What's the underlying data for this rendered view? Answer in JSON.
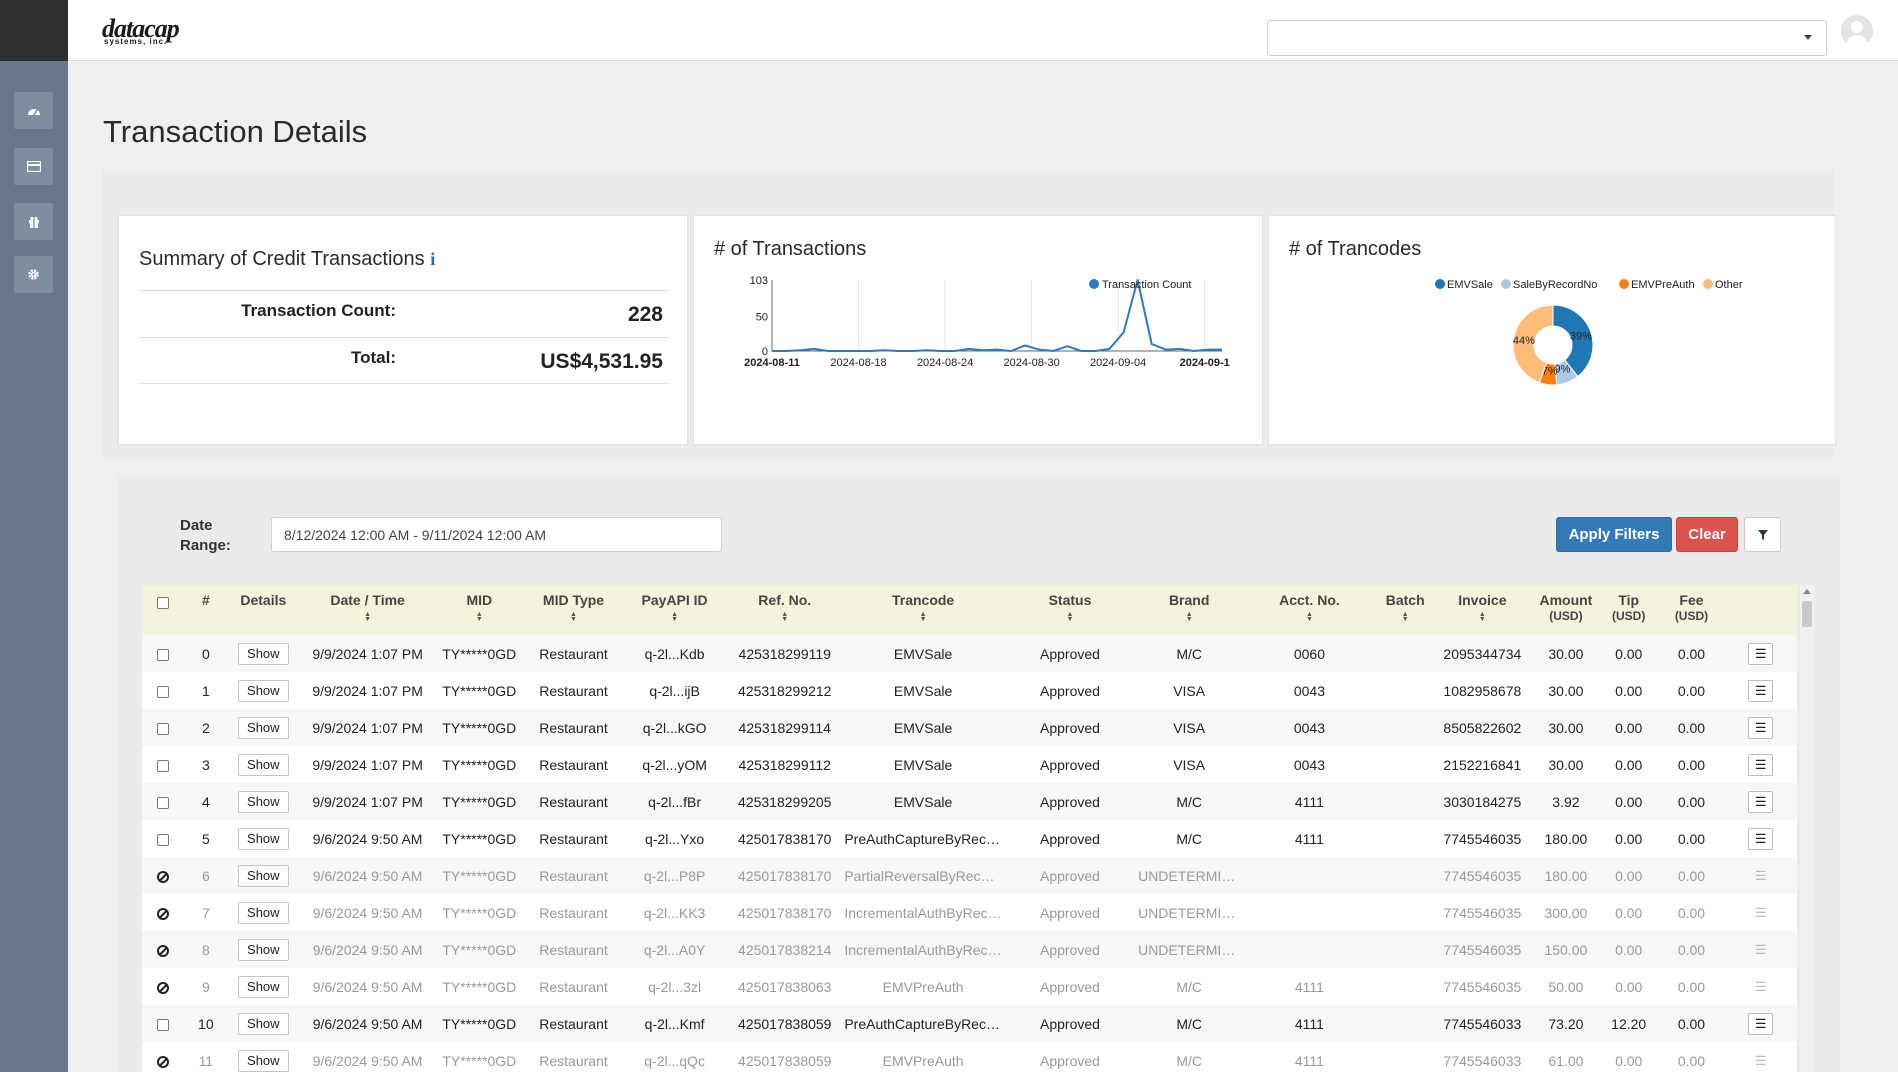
{
  "header": {
    "logo_main": "datacap",
    "logo_sub": "systems, inc.",
    "select_value": ""
  },
  "sidebar": {
    "items": [
      {
        "icon": "dashboard-icon"
      },
      {
        "icon": "credit-card-icon"
      },
      {
        "icon": "gift-icon"
      },
      {
        "icon": "gear-icon"
      }
    ]
  },
  "page": {
    "title": "Transaction Details"
  },
  "summary": {
    "title": "Summary of Credit Transactions",
    "info_icon": "i",
    "count_label": "Transaction Count:",
    "count_value": "228",
    "total_label": "Total:",
    "total_value": "US$4,531.95"
  },
  "transactions_chart": {
    "title": "# of Transactions"
  },
  "trancodes_chart": {
    "title": "# of Trancodes"
  },
  "chart_data": [
    {
      "type": "line",
      "title": "# of Transactions",
      "series": [
        {
          "name": "Transaction Count",
          "color": "#2a7bbf",
          "values": [
            0,
            0,
            1,
            3,
            0,
            0,
            0,
            0,
            1,
            0,
            0,
            1,
            0,
            0,
            3,
            1,
            2,
            0,
            8,
            2,
            0,
            7,
            0,
            0,
            3,
            27,
            103,
            10,
            2,
            3,
            0,
            2,
            2
          ]
        }
      ],
      "x_ticks": [
        "2024-08-11",
        "2024-08-18",
        "2024-08-24",
        "2024-08-30",
        "2024-09-04",
        "2024-09-1"
      ],
      "y_ticks": [
        "0",
        "50",
        "103"
      ],
      "ylim": [
        0,
        103
      ],
      "grid": true,
      "legend": "top-right"
    },
    {
      "type": "pie",
      "title": "# of Trancodes",
      "slices": [
        {
          "name": "EMVSale",
          "value": 39,
          "label": "39%",
          "color": "#1f77b4"
        },
        {
          "name": "SaleByRecordNo",
          "value": 9,
          "label": "9%",
          "color": "#aec7e8"
        },
        {
          "name": "EMVPreAuth",
          "value": 7,
          "label": "7%",
          "color": "#ff7f0e"
        },
        {
          "name": "Other",
          "value": 44,
          "label": "44%",
          "color": "#ffbb78"
        }
      ],
      "legend": "top"
    }
  ],
  "filters": {
    "date_range_label_1": "Date",
    "date_range_label_2": "Range:",
    "date_range_value": "8/12/2024 12:00 AM - 9/11/2024 12:00 AM",
    "apply_label": "Apply Filters",
    "clear_label": "Clear"
  },
  "table": {
    "columns": [
      {
        "key": "select",
        "label": ""
      },
      {
        "key": "num",
        "label": "#"
      },
      {
        "key": "details",
        "label": "Details"
      },
      {
        "key": "datetime",
        "label": "Date / Time",
        "sortable": true
      },
      {
        "key": "mid",
        "label": "MID",
        "sortable": true
      },
      {
        "key": "midtype",
        "label": "MID Type",
        "sortable": true
      },
      {
        "key": "payapi",
        "label": "PayAPI ID",
        "sortable": true
      },
      {
        "key": "ref",
        "label": "Ref. No.",
        "sortable": true
      },
      {
        "key": "trancode",
        "label": "Trancode",
        "sortable": true
      },
      {
        "key": "status",
        "label": "Status",
        "sortable": true
      },
      {
        "key": "brand",
        "label": "Brand",
        "sortable": true
      },
      {
        "key": "acct",
        "label": "Acct. No.",
        "sortable": true
      },
      {
        "key": "batch",
        "label": "Batch",
        "sortable": true
      },
      {
        "key": "invoice",
        "label": "Invoice",
        "sortable": true
      },
      {
        "key": "amount",
        "label": "Amount",
        "sub": "(USD)"
      },
      {
        "key": "tip",
        "label": "Tip",
        "sub": "(USD)"
      },
      {
        "key": "fee",
        "label": "Fee",
        "sub": "(USD)"
      },
      {
        "key": "menu",
        "label": ""
      }
    ],
    "show_label": "Show",
    "rows": [
      {
        "num": "0",
        "disabled": false,
        "datetime": "9/9/2024 1:07 PM",
        "mid": "TY*****0GD",
        "midtype": "Restaurant",
        "payapi": "q-2l...Kdb",
        "ref": "425318299119",
        "trancode": "EMVSale",
        "status": "Approved",
        "brand": "M/C",
        "acct": "0060",
        "batch": "",
        "invoice": "2095344734",
        "amount": "30.00",
        "tip": "0.00",
        "fee": "0.00"
      },
      {
        "num": "1",
        "disabled": false,
        "datetime": "9/9/2024 1:07 PM",
        "mid": "TY*****0GD",
        "midtype": "Restaurant",
        "payapi": "q-2l...ijB",
        "ref": "425318299212",
        "trancode": "EMVSale",
        "status": "Approved",
        "brand": "VISA",
        "acct": "0043",
        "batch": "",
        "invoice": "1082958678",
        "amount": "30.00",
        "tip": "0.00",
        "fee": "0.00"
      },
      {
        "num": "2",
        "disabled": false,
        "datetime": "9/9/2024 1:07 PM",
        "mid": "TY*****0GD",
        "midtype": "Restaurant",
        "payapi": "q-2l...kGO",
        "ref": "425318299114",
        "trancode": "EMVSale",
        "status": "Approved",
        "brand": "VISA",
        "acct": "0043",
        "batch": "",
        "invoice": "8505822602",
        "amount": "30.00",
        "tip": "0.00",
        "fee": "0.00"
      },
      {
        "num": "3",
        "disabled": false,
        "datetime": "9/9/2024 1:07 PM",
        "mid": "TY*****0GD",
        "midtype": "Restaurant",
        "payapi": "q-2l...yOM",
        "ref": "425318299112",
        "trancode": "EMVSale",
        "status": "Approved",
        "brand": "VISA",
        "acct": "0043",
        "batch": "",
        "invoice": "2152216841",
        "amount": "30.00",
        "tip": "0.00",
        "fee": "0.00"
      },
      {
        "num": "4",
        "disabled": false,
        "datetime": "9/9/2024 1:07 PM",
        "mid": "TY*****0GD",
        "midtype": "Restaurant",
        "payapi": "q-2l...fBr",
        "ref": "425318299205",
        "trancode": "EMVSale",
        "status": "Approved",
        "brand": "M/C",
        "acct": "4111",
        "batch": "",
        "invoice": "3030184275",
        "amount": "3.92",
        "tip": "0.00",
        "fee": "0.00"
      },
      {
        "num": "5",
        "disabled": false,
        "datetime": "9/6/2024 9:50 AM",
        "mid": "TY*****0GD",
        "midtype": "Restaurant",
        "payapi": "q-2l...Yxo",
        "ref": "425017838170",
        "trancode": "PreAuthCaptureByRecor...",
        "status": "Approved",
        "brand": "M/C",
        "acct": "4111",
        "batch": "",
        "invoice": "7745546035",
        "amount": "180.00",
        "tip": "0.00",
        "fee": "0.00"
      },
      {
        "num": "6",
        "disabled": true,
        "datetime": "9/6/2024 9:50 AM",
        "mid": "TY*****0GD",
        "midtype": "Restaurant",
        "payapi": "q-2l...P8P",
        "ref": "425017838170",
        "trancode": "PartialReversalByRecord...",
        "status": "Approved",
        "brand": "UNDETERMINED",
        "acct": "",
        "batch": "",
        "invoice": "7745546035",
        "amount": "180.00",
        "tip": "0.00",
        "fee": "0.00"
      },
      {
        "num": "7",
        "disabled": true,
        "datetime": "9/6/2024 9:50 AM",
        "mid": "TY*****0GD",
        "midtype": "Restaurant",
        "payapi": "q-2l...KK3",
        "ref": "425017838170",
        "trancode": "IncrementalAuthByReco...",
        "status": "Approved",
        "brand": "UNDETERMINED",
        "acct": "",
        "batch": "",
        "invoice": "7745546035",
        "amount": "300.00",
        "tip": "0.00",
        "fee": "0.00"
      },
      {
        "num": "8",
        "disabled": true,
        "datetime": "9/6/2024 9:50 AM",
        "mid": "TY*****0GD",
        "midtype": "Restaurant",
        "payapi": "q-2l...A0Y",
        "ref": "425017838214",
        "trancode": "IncrementalAuthByReco...",
        "status": "Approved",
        "brand": "UNDETERMINED",
        "acct": "",
        "batch": "",
        "invoice": "7745546035",
        "amount": "150.00",
        "tip": "0.00",
        "fee": "0.00"
      },
      {
        "num": "9",
        "disabled": true,
        "datetime": "9/6/2024 9:50 AM",
        "mid": "TY*****0GD",
        "midtype": "Restaurant",
        "payapi": "q-2l...3zl",
        "ref": "425017838063",
        "trancode": "EMVPreAuth",
        "status": "Approved",
        "brand": "M/C",
        "acct": "4111",
        "batch": "",
        "invoice": "7745546035",
        "amount": "50.00",
        "tip": "0.00",
        "fee": "0.00"
      },
      {
        "num": "10",
        "disabled": false,
        "datetime": "9/6/2024 9:50 AM",
        "mid": "TY*****0GD",
        "midtype": "Restaurant",
        "payapi": "q-2l...Kmf",
        "ref": "425017838059",
        "trancode": "PreAuthCaptureByRecor...",
        "status": "Approved",
        "brand": "M/C",
        "acct": "4111",
        "batch": "",
        "invoice": "7745546033",
        "amount": "73.20",
        "tip": "12.20",
        "fee": "0.00"
      },
      {
        "num": "11",
        "disabled": true,
        "datetime": "9/6/2024 9:50 AM",
        "mid": "TY*****0GD",
        "midtype": "Restaurant",
        "payapi": "q-2l...qQc",
        "ref": "425017838059",
        "trancode": "EMVPreAuth",
        "status": "Approved",
        "brand": "M/C",
        "acct": "4111",
        "batch": "",
        "invoice": "7745546033",
        "amount": "61.00",
        "tip": "0.00",
        "fee": "0.00"
      }
    ]
  }
}
